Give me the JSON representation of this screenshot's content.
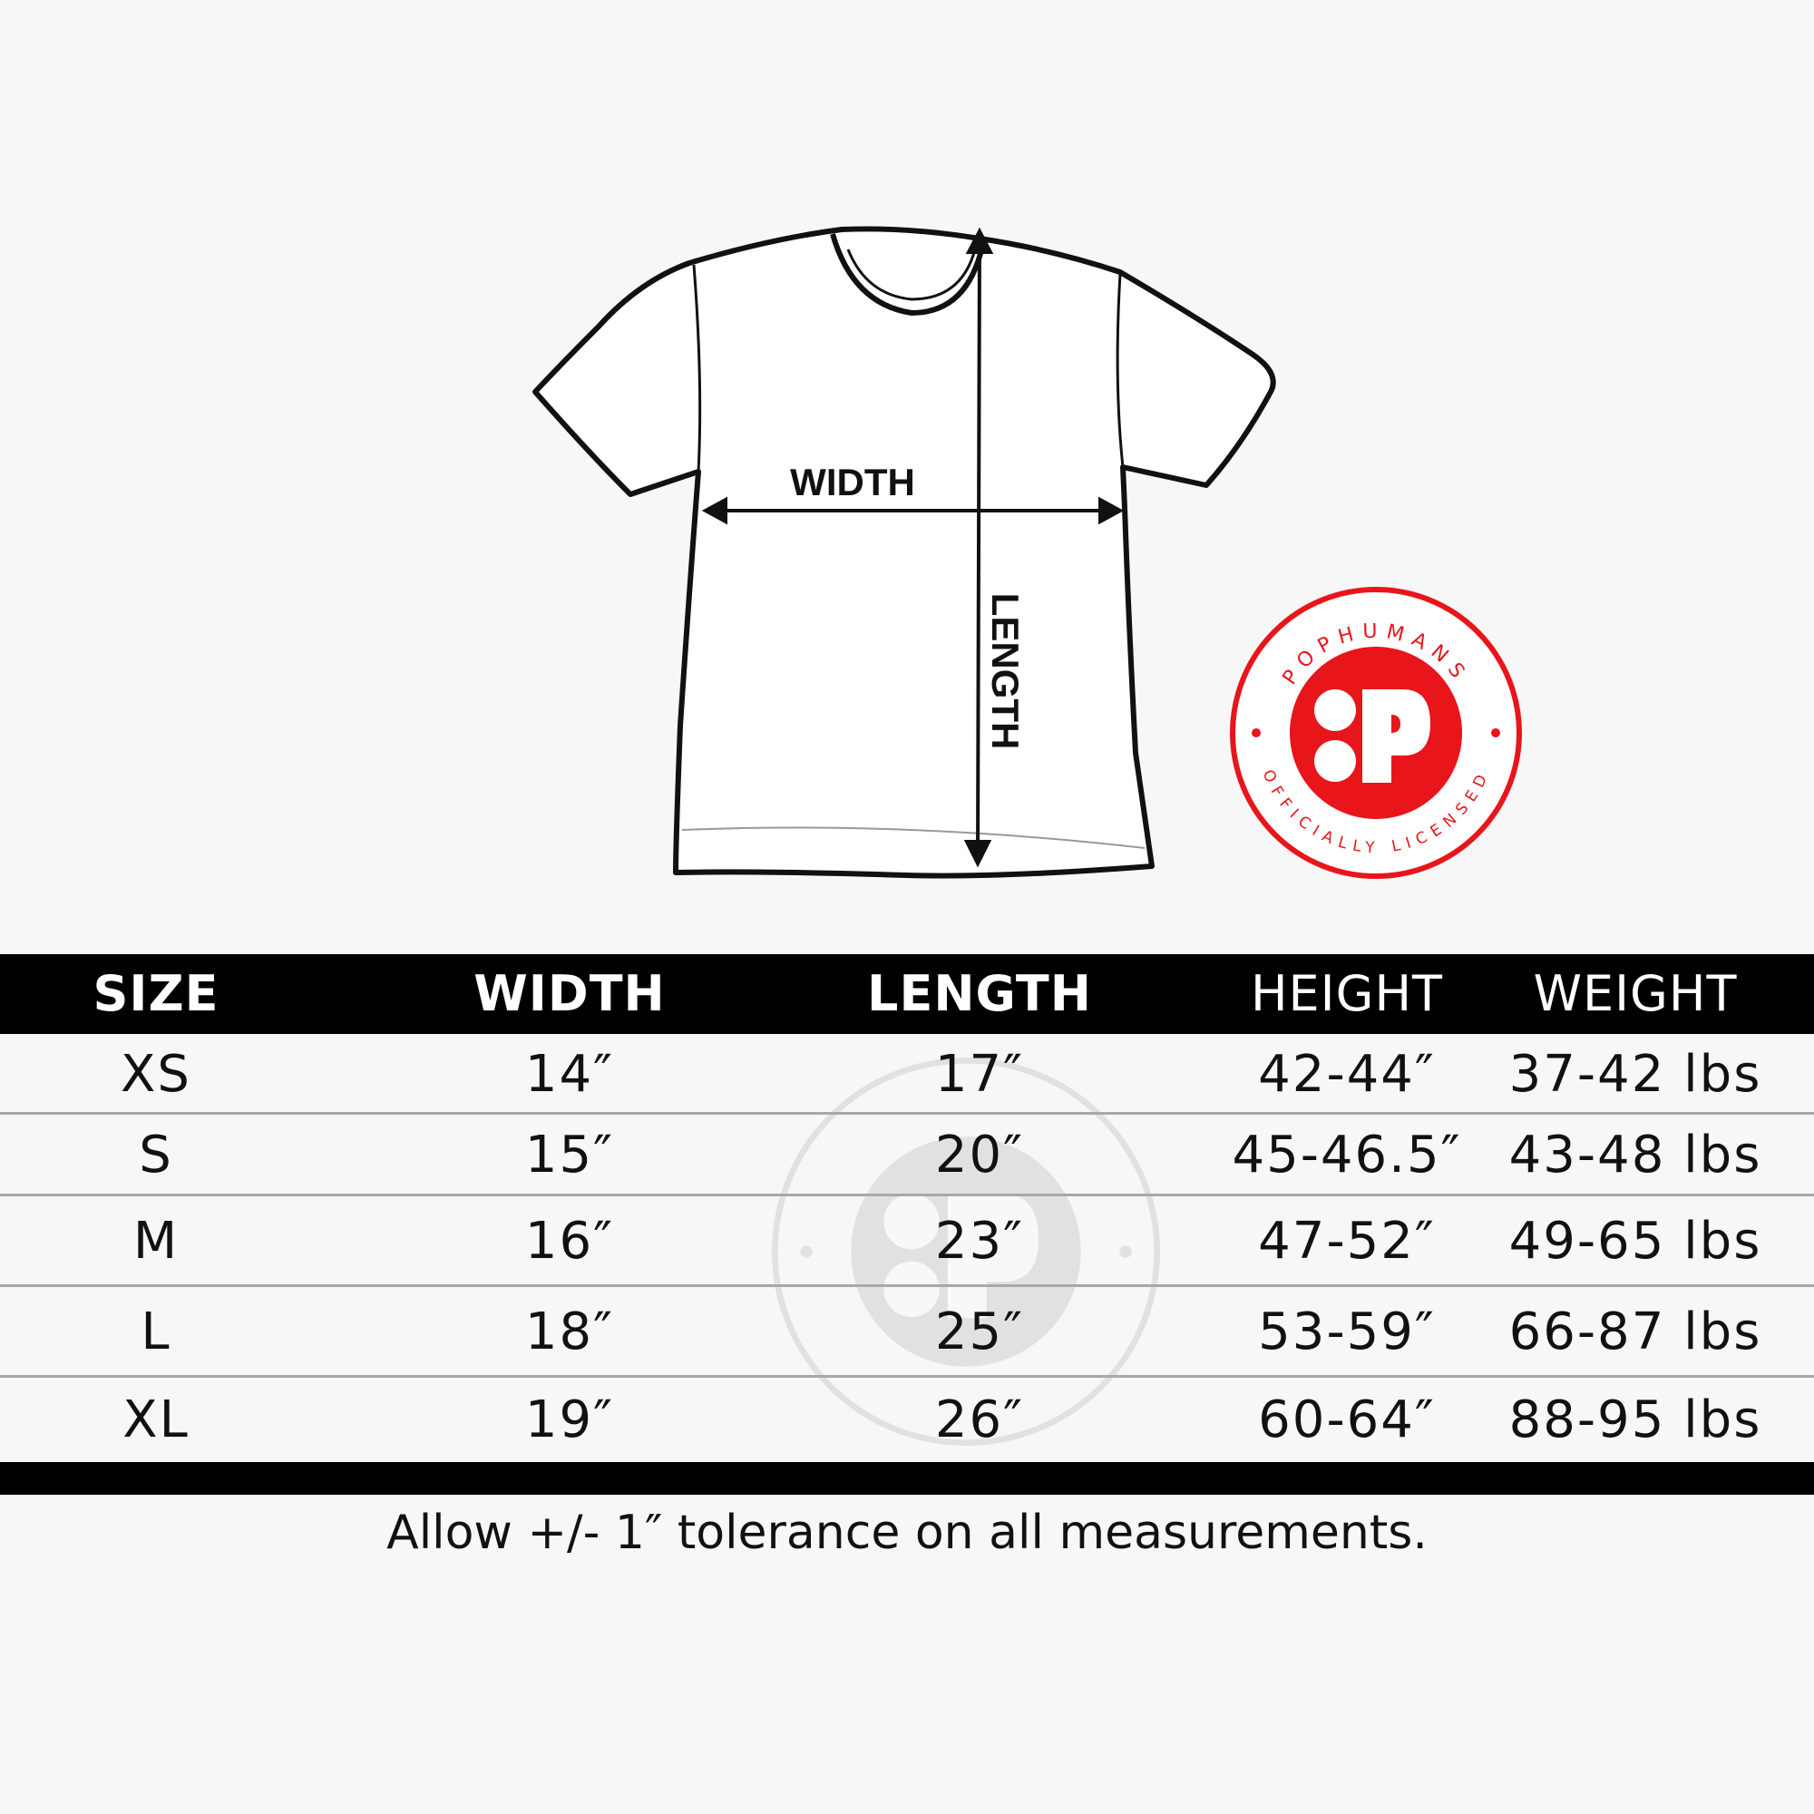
{
  "diagram": {
    "width_label": "WIDTH",
    "length_label": "LENGTH"
  },
  "badge": {
    "brand": "POPHUMANS",
    "subtitle": "OFFICIALLY LICENSED",
    "brand_color": "#e8151b"
  },
  "table": {
    "columns": [
      "SIZE",
      "WIDTH",
      "LENGTH",
      "HEIGHT",
      "WEIGHT"
    ],
    "rows": [
      [
        "XS",
        "14″",
        "17″",
        "42-44″",
        "37-42 lbs"
      ],
      [
        "S",
        "15″",
        "20″",
        "45-46.5″",
        "43-48 lbs"
      ],
      [
        "M",
        "16″",
        "23″",
        "47-52″",
        "49-65 lbs"
      ],
      [
        "L",
        "18″",
        "25″",
        "53-59″",
        "66-87 lbs"
      ],
      [
        "XL",
        "19″",
        "26″",
        "60-64″",
        "88-95 lbs"
      ]
    ]
  },
  "footer": {
    "note": "Allow +/- 1″ tolerance on all measurements."
  }
}
